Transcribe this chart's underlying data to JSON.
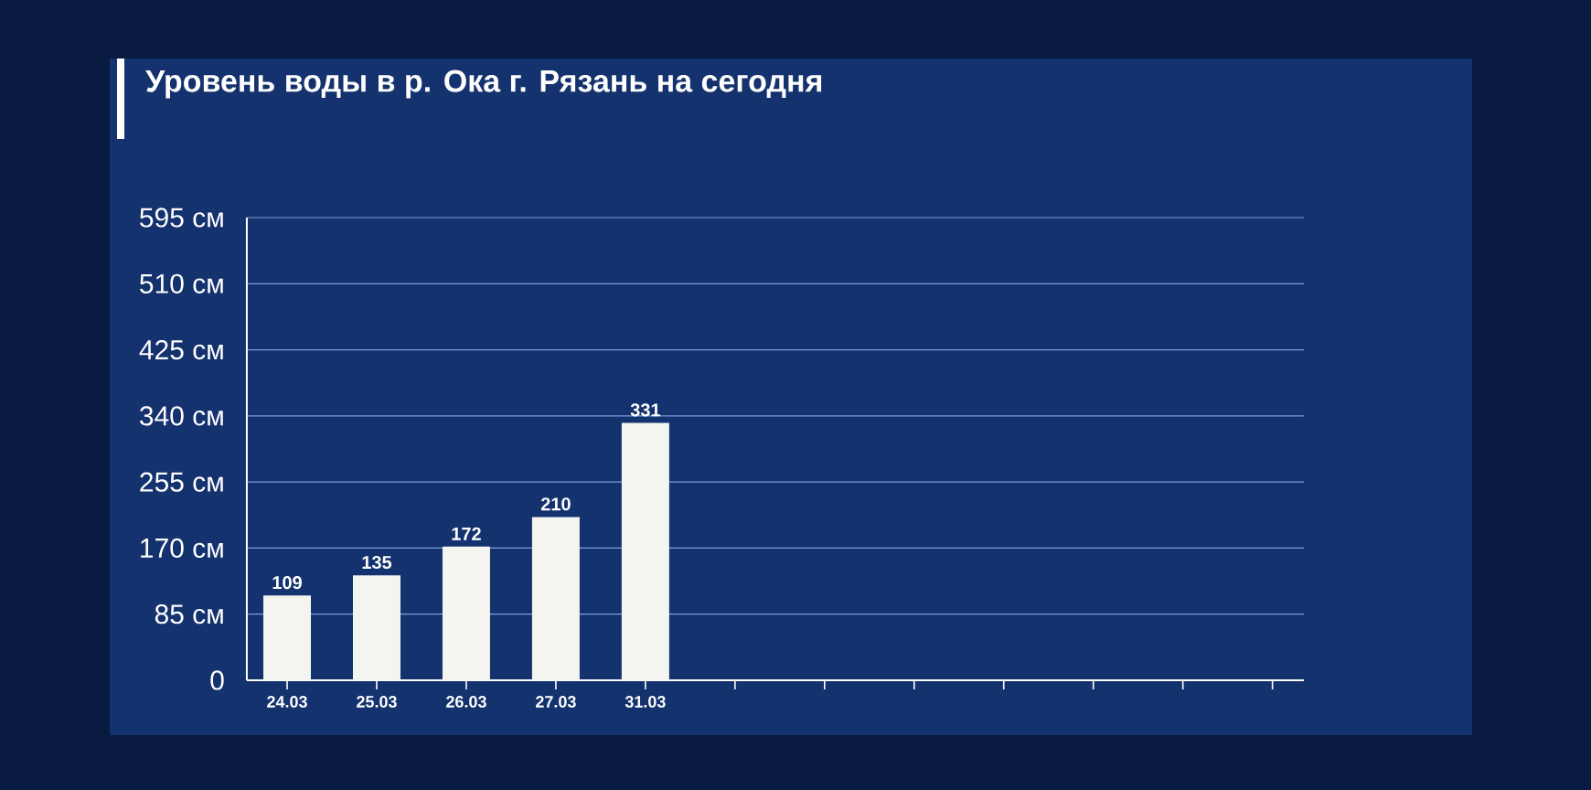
{
  "chart_data": {
    "type": "bar",
    "title": "Уровень воды в р. Ока г. Рязань на сегодня",
    "categories": [
      "24.03",
      "25.03",
      "26.03",
      "27.03",
      "31.03",
      null,
      null,
      null,
      null,
      null,
      null,
      null
    ],
    "values": [
      109,
      135,
      172,
      210,
      331,
      null,
      null,
      null,
      null,
      null,
      null,
      null
    ],
    "color": "#f4f4f0",
    "ylim": [
      0,
      595
    ],
    "yticks": [
      0,
      {
        "value": 85,
        "label": "85 см"
      },
      {
        "value": 170,
        "label": "170 см"
      },
      {
        "value": 255,
        "label": "255 см"
      },
      {
        "value": 340,
        "label": "340 см"
      },
      {
        "value": 425,
        "label": "425 см"
      },
      {
        "value": 510,
        "label": "510 см"
      },
      {
        "value": 595,
        "label": "595 см"
      }
    ],
    "grid": "y",
    "data_labels": true
  }
}
